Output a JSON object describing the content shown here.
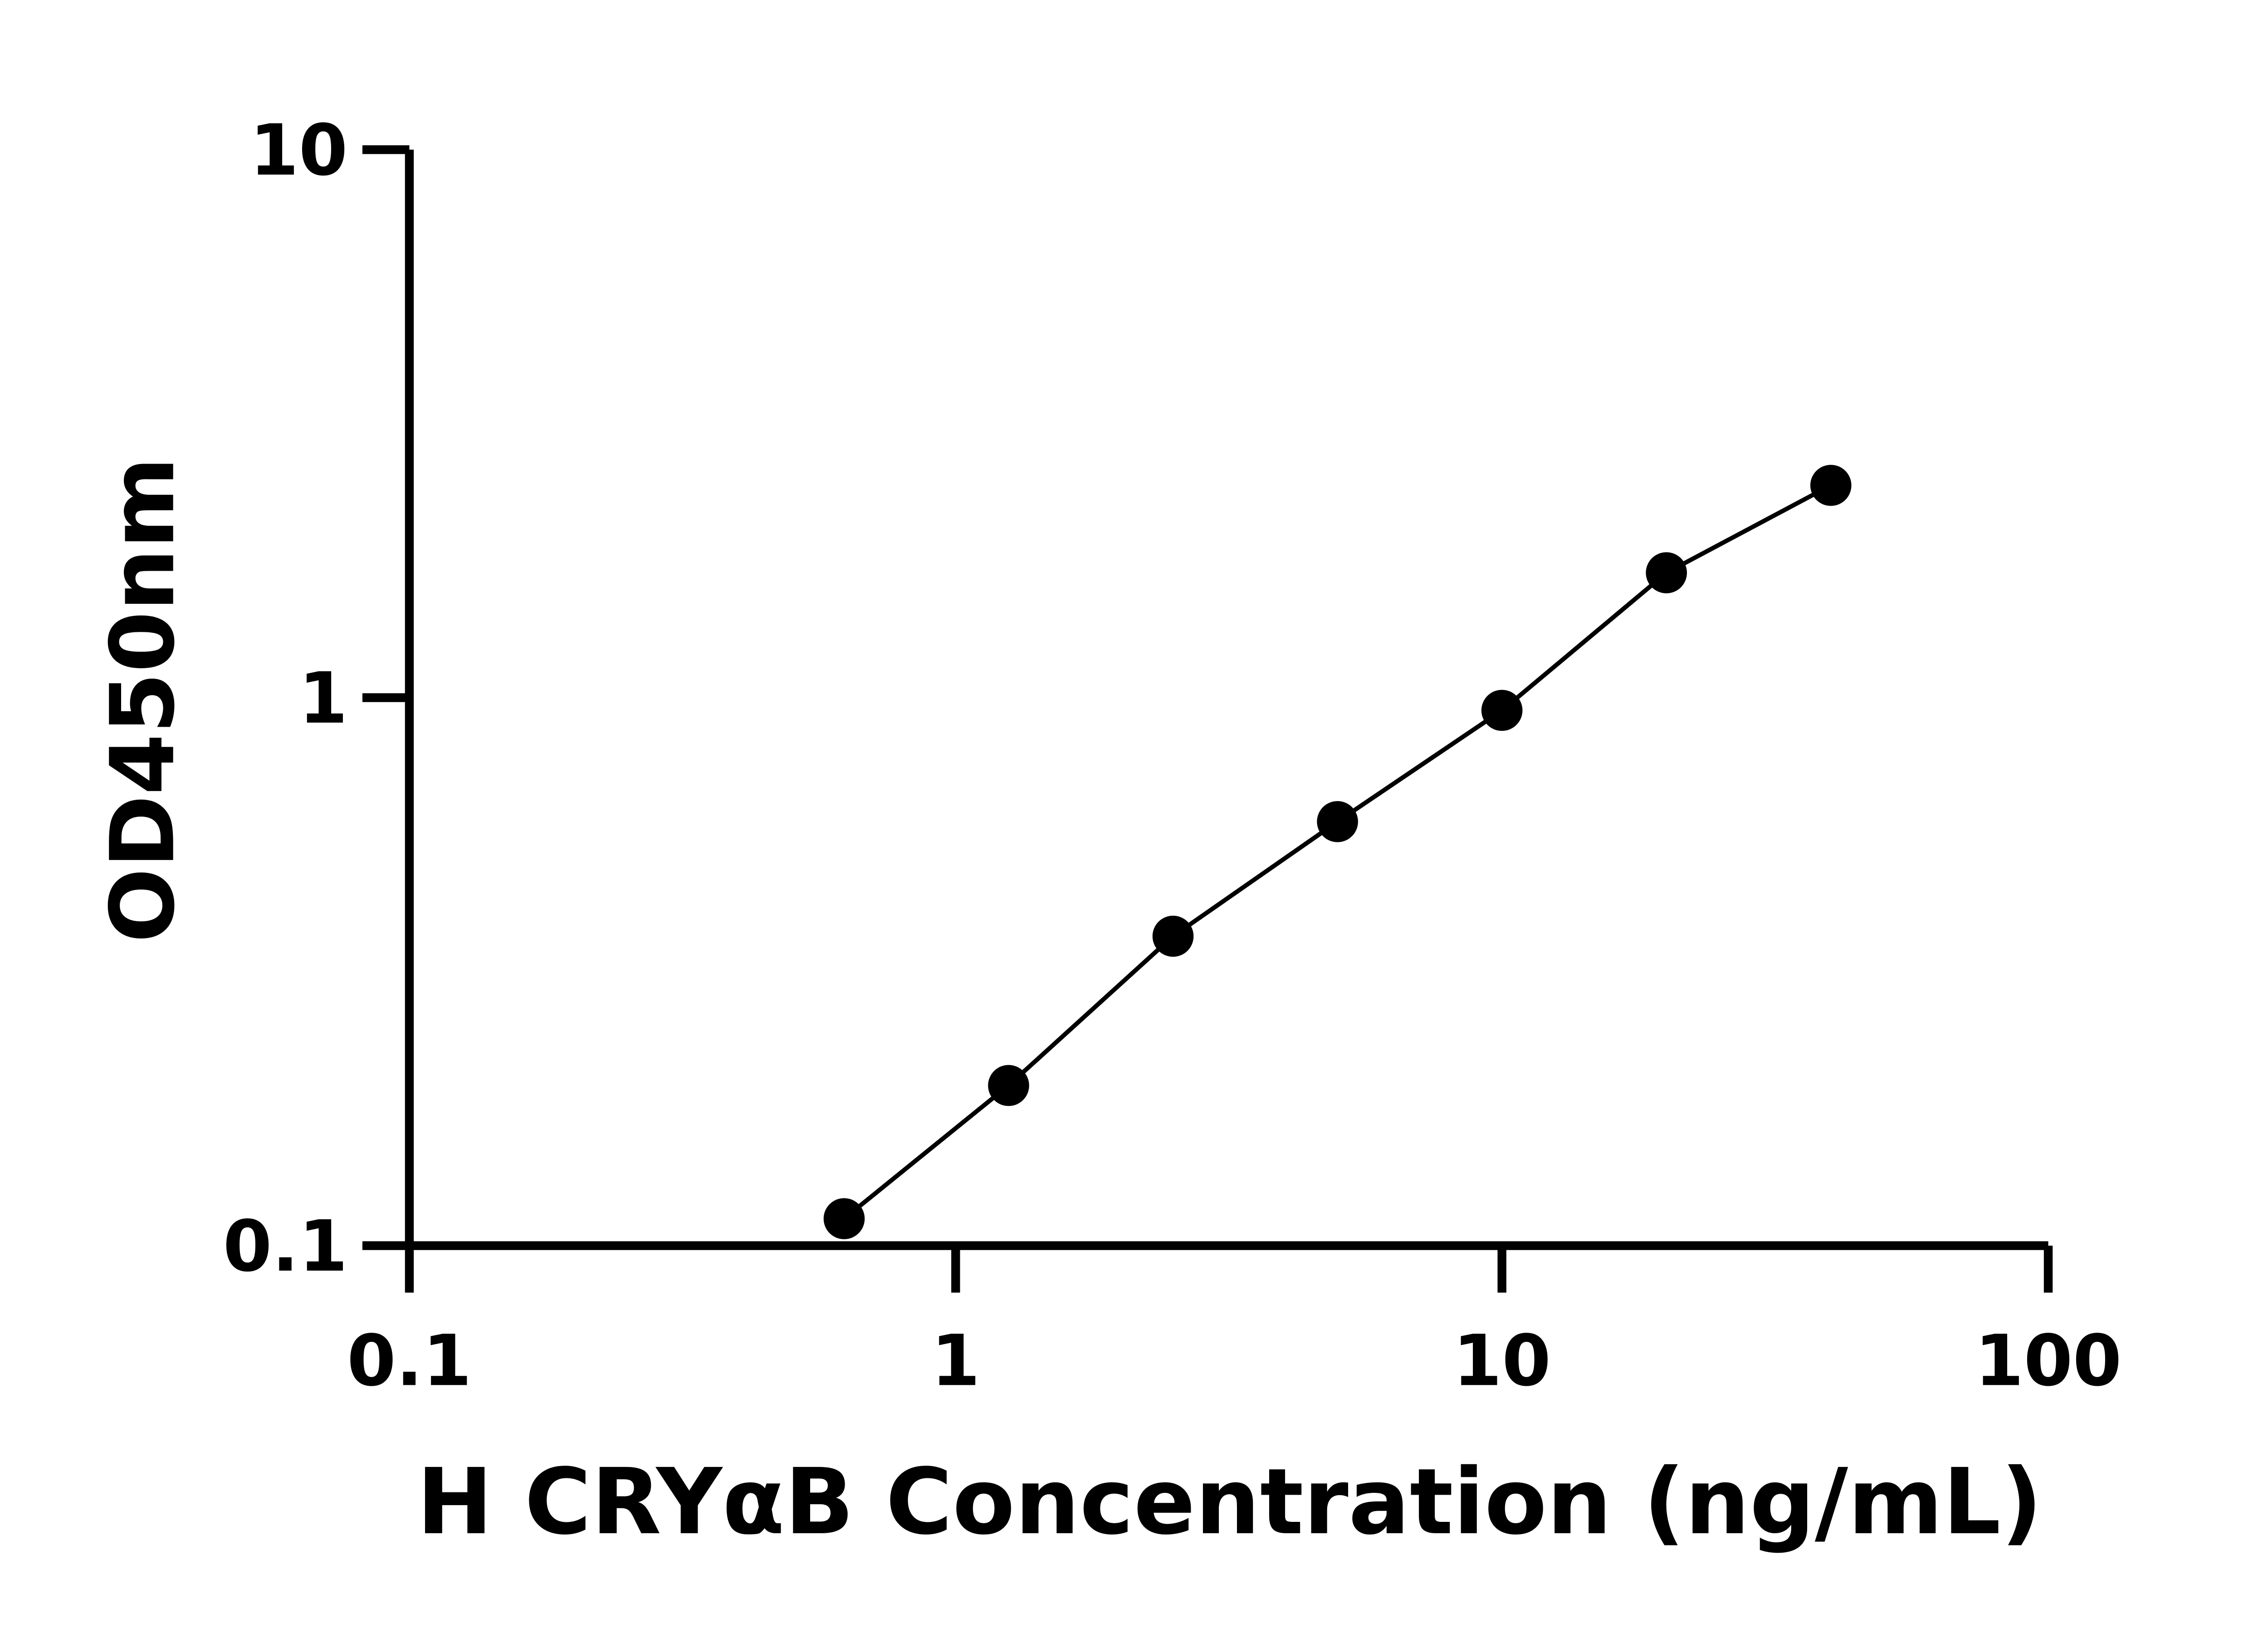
{
  "chart_data": {
    "type": "scatter",
    "title": "",
    "xlabel": "H CRYαB Concentration (ng/mL)",
    "ylabel": "OD450nm",
    "x_scale": "log",
    "y_scale": "log",
    "xlim": [
      0.1,
      100
    ],
    "ylim": [
      0.1,
      10
    ],
    "x_ticks": [
      "0.1",
      "1",
      "10",
      "100"
    ],
    "y_ticks": [
      "0.1",
      "1",
      "10"
    ],
    "grid": false,
    "marker_color": "#000000",
    "line_color": "#000000",
    "fit_curve": true,
    "series": [
      {
        "x": [
          0.625,
          1.25,
          2.5,
          5,
          10,
          20,
          40
        ],
        "y": [
          0.112,
          0.196,
          0.367,
          0.594,
          0.948,
          1.69,
          2.44
        ]
      }
    ]
  }
}
